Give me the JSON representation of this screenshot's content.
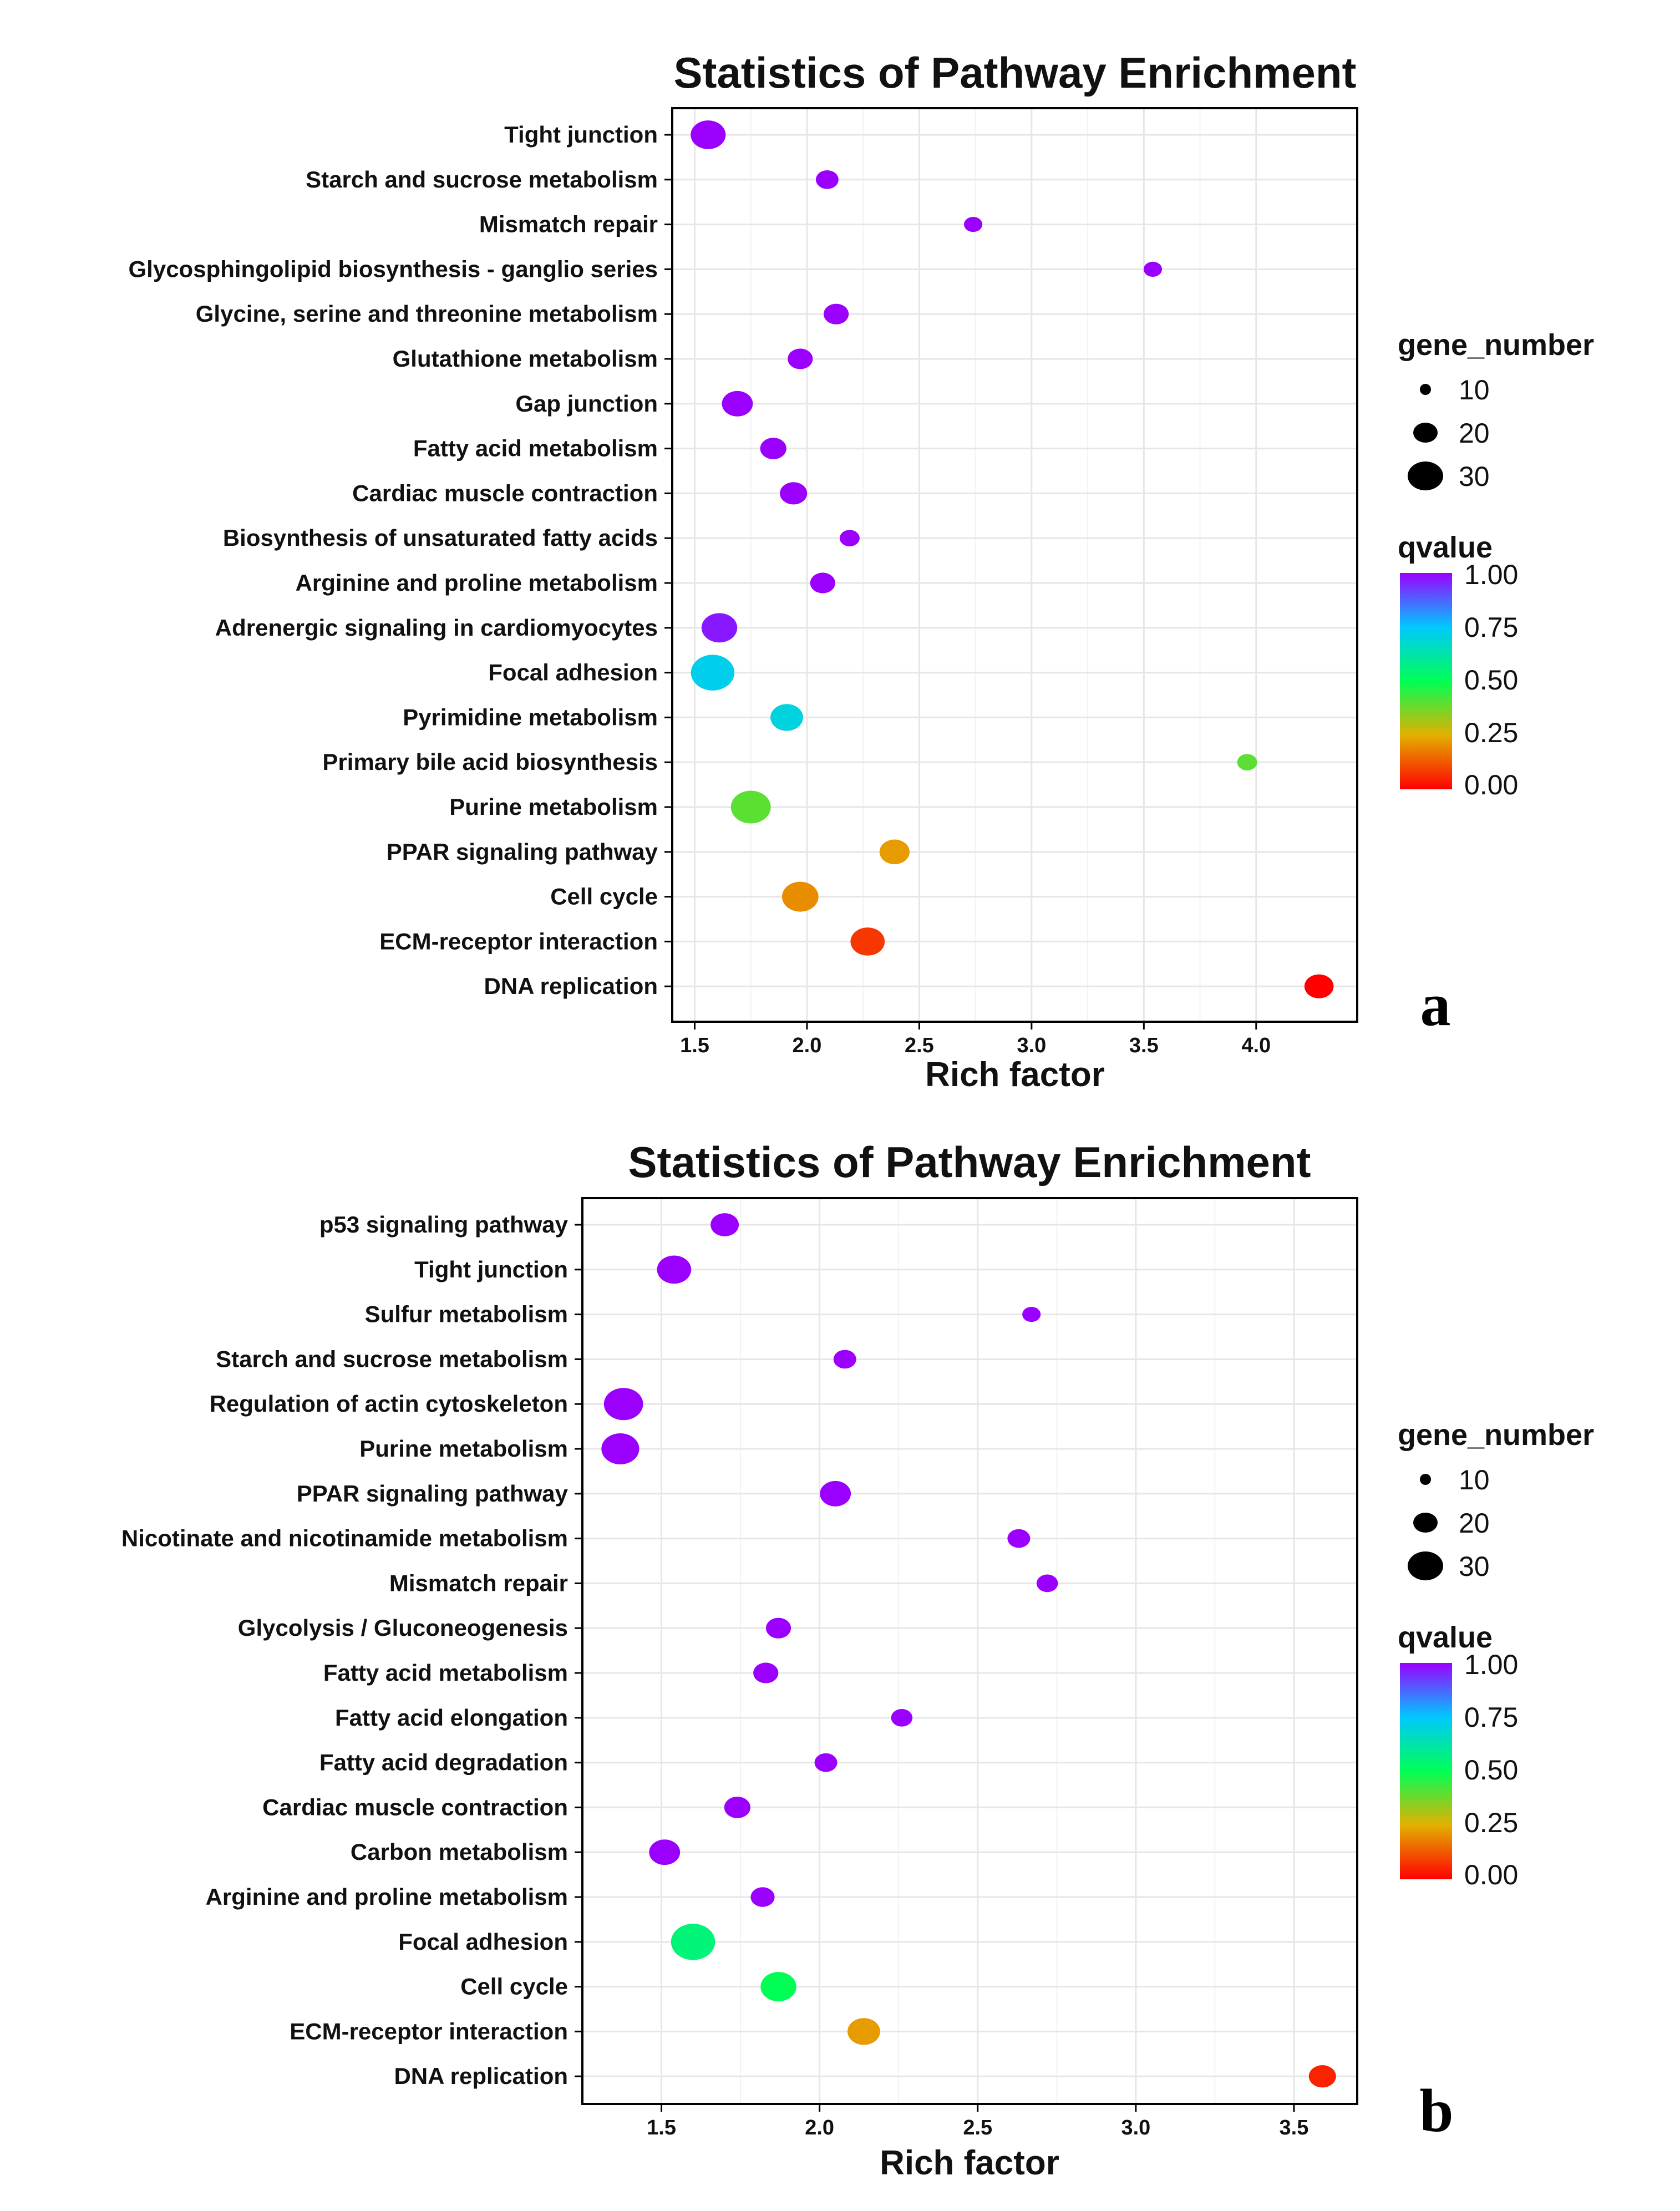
{
  "chart_data": [
    {
      "type": "scatter",
      "title": "Statistics of Pathway Enrichment",
      "xlabel": "Rich factor",
      "ylabel": "",
      "xlim": [
        1.4,
        4.45
      ],
      "xticks": [
        1.5,
        2.0,
        2.5,
        3.0,
        3.5,
        4.0
      ],
      "xtick_labels": [
        "1.5",
        "2.0",
        "2.5",
        "3.0",
        "3.5",
        "4.0"
      ],
      "grid": true,
      "legend_position": "right",
      "panel_label": "a",
      "size_legend": {
        "title": "gene_number",
        "values": [
          10,
          20,
          30
        ],
        "labels": [
          "10",
          "20",
          "30"
        ]
      },
      "color_legend": {
        "title": "qvalue",
        "ticks": [
          "1.00",
          "0.75",
          "0.50",
          "0.25",
          "0.00"
        ]
      },
      "categories": [
        "Tight junction",
        "Starch and sucrose metabolism",
        "Mismatch repair",
        "Glycosphingolipid biosynthesis - ganglio series",
        "Glycine, serine and threonine metabolism",
        "Glutathione metabolism",
        "Gap junction",
        "Fatty acid metabolism",
        "Cardiac muscle contraction",
        "Biosynthesis of unsaturated fatty acids",
        "Arginine and proline metabolism",
        "Adrenergic signaling in cardiomyocytes",
        "Focal adhesion",
        "Pyrimidine metabolism",
        "Primary bile acid biosynthesis",
        "Purine metabolism",
        "PPAR signaling pathway",
        "Cell cycle",
        "ECM-receptor interaction",
        "DNA replication"
      ],
      "points": [
        {
          "rich_factor": 1.56,
          "gene_number": 20,
          "qvalue": 1.0
        },
        {
          "rich_factor": 2.09,
          "gene_number": 7,
          "qvalue": 1.0
        },
        {
          "rich_factor": 2.74,
          "gene_number": 4,
          "qvalue": 1.0
        },
        {
          "rich_factor": 3.54,
          "gene_number": 4,
          "qvalue": 1.0
        },
        {
          "rich_factor": 2.13,
          "gene_number": 9,
          "qvalue": 1.0
        },
        {
          "rich_factor": 1.97,
          "gene_number": 9,
          "qvalue": 1.0
        },
        {
          "rich_factor": 1.69,
          "gene_number": 15,
          "qvalue": 1.0
        },
        {
          "rich_factor": 1.85,
          "gene_number": 10,
          "qvalue": 1.0
        },
        {
          "rich_factor": 1.94,
          "gene_number": 11,
          "qvalue": 1.0
        },
        {
          "rich_factor": 2.19,
          "gene_number": 5,
          "qvalue": 1.0
        },
        {
          "rich_factor": 2.07,
          "gene_number": 9,
          "qvalue": 1.0
        },
        {
          "rich_factor": 1.61,
          "gene_number": 21,
          "qvalue": 0.97
        },
        {
          "rich_factor": 1.58,
          "gene_number": 33,
          "qvalue": 0.72
        },
        {
          "rich_factor": 1.91,
          "gene_number": 17,
          "qvalue": 0.7
        },
        {
          "rich_factor": 3.96,
          "gene_number": 5,
          "qvalue": 0.4
        },
        {
          "rich_factor": 1.75,
          "gene_number": 27,
          "qvalue": 0.4
        },
        {
          "rich_factor": 2.39,
          "gene_number": 14,
          "qvalue": 0.22
        },
        {
          "rich_factor": 1.97,
          "gene_number": 22,
          "qvalue": 0.2
        },
        {
          "rich_factor": 2.27,
          "gene_number": 19,
          "qvalue": 0.08
        },
        {
          "rich_factor": 4.28,
          "gene_number": 13,
          "qvalue": 0.0
        }
      ]
    },
    {
      "type": "scatter",
      "title": "Statistics of Pathway Enrichment",
      "xlabel": "Rich factor",
      "ylabel": "",
      "xlim": [
        1.25,
        3.7
      ],
      "xticks": [
        1.5,
        2.0,
        2.5,
        3.0,
        3.5
      ],
      "xtick_labels": [
        "1.5",
        "2.0",
        "2.5",
        "3.0",
        "3.5"
      ],
      "grid": true,
      "legend_position": "right",
      "panel_label": "b",
      "size_legend": {
        "title": "gene_number",
        "values": [
          10,
          20,
          30
        ],
        "labels": [
          "10",
          "20",
          "30"
        ]
      },
      "color_legend": {
        "title": "qvalue",
        "ticks": [
          "1.00",
          "0.75",
          "0.50",
          "0.25",
          "0.00"
        ]
      },
      "categories": [
        "p53 signaling pathway",
        "Tight junction",
        "Sulfur metabolism",
        "Starch and sucrose metabolism",
        "Regulation of actin cytoskeleton",
        "Purine metabolism",
        "PPAR signaling pathway",
        "Nicotinate and nicotinamide metabolism",
        "Mismatch repair",
        "Glycolysis / Gluconeogenesis",
        "Fatty acid metabolism",
        "Fatty acid elongation",
        "Fatty acid degradation",
        "Cardiac muscle contraction",
        "Carbon metabolism",
        "Arginine and proline metabolism",
        "Focal adhesion",
        "Cell cycle",
        "ECM-receptor interaction",
        "DNA replication"
      ],
      "points": [
        {
          "rich_factor": 1.7,
          "gene_number": 12,
          "qvalue": 1.0
        },
        {
          "rich_factor": 1.54,
          "gene_number": 19,
          "qvalue": 1.0
        },
        {
          "rich_factor": 2.67,
          "gene_number": 4,
          "qvalue": 1.0
        },
        {
          "rich_factor": 2.08,
          "gene_number": 7,
          "qvalue": 1.0
        },
        {
          "rich_factor": 1.38,
          "gene_number": 26,
          "qvalue": 1.0
        },
        {
          "rich_factor": 1.37,
          "gene_number": 24,
          "qvalue": 1.0
        },
        {
          "rich_factor": 2.05,
          "gene_number": 15,
          "qvalue": 1.0
        },
        {
          "rich_factor": 2.63,
          "gene_number": 7,
          "qvalue": 1.0
        },
        {
          "rich_factor": 2.72,
          "gene_number": 6,
          "qvalue": 1.0
        },
        {
          "rich_factor": 1.87,
          "gene_number": 9,
          "qvalue": 1.0
        },
        {
          "rich_factor": 1.83,
          "gene_number": 9,
          "qvalue": 1.0
        },
        {
          "rich_factor": 2.26,
          "gene_number": 6,
          "qvalue": 1.0
        },
        {
          "rich_factor": 2.02,
          "gene_number": 7,
          "qvalue": 1.0
        },
        {
          "rich_factor": 1.74,
          "gene_number": 10,
          "qvalue": 1.0
        },
        {
          "rich_factor": 1.51,
          "gene_number": 15,
          "qvalue": 1.0
        },
        {
          "rich_factor": 1.82,
          "gene_number": 8,
          "qvalue": 1.0
        },
        {
          "rich_factor": 1.6,
          "gene_number": 34,
          "qvalue": 0.55
        },
        {
          "rich_factor": 1.87,
          "gene_number": 21,
          "qvalue": 0.5
        },
        {
          "rich_factor": 2.14,
          "gene_number": 17,
          "qvalue": 0.22
        },
        {
          "rich_factor": 3.59,
          "gene_number": 11,
          "qvalue": 0.05
        }
      ]
    }
  ]
}
